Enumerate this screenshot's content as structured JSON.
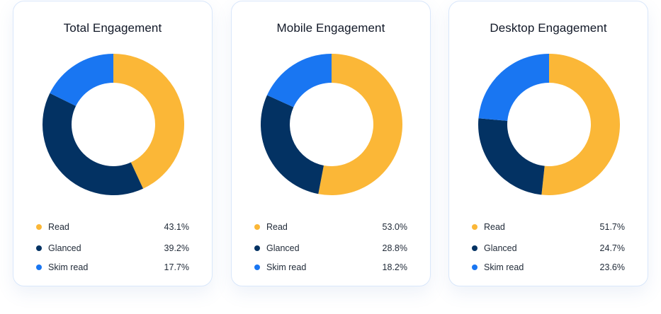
{
  "colors": {
    "read": "#FBB737",
    "glanced": "#033263",
    "skim_read": "#1976F2"
  },
  "chart_data": [
    {
      "type": "pie",
      "title": "Total Engagement",
      "categories": [
        "Read",
        "Glanced",
        "Skim read"
      ],
      "values": [
        43.1,
        39.2,
        17.7
      ],
      "value_labels": [
        "43.1%",
        "39.2%",
        "17.7%"
      ],
      "legend": "bottom"
    },
    {
      "type": "pie",
      "title": "Mobile Engagement",
      "categories": [
        "Read",
        "Glanced",
        "Skim read"
      ],
      "values": [
        53.0,
        28.8,
        18.2
      ],
      "value_labels": [
        "53.0%",
        "28.8%",
        "18.2%"
      ],
      "legend": "bottom"
    },
    {
      "type": "pie",
      "title": "Desktop Engagement",
      "categories": [
        "Read",
        "Glanced",
        "Skim read"
      ],
      "values": [
        51.7,
        24.7,
        23.6
      ],
      "value_labels": [
        "51.7%",
        "24.7%",
        "23.6%"
      ],
      "legend": "bottom"
    }
  ]
}
